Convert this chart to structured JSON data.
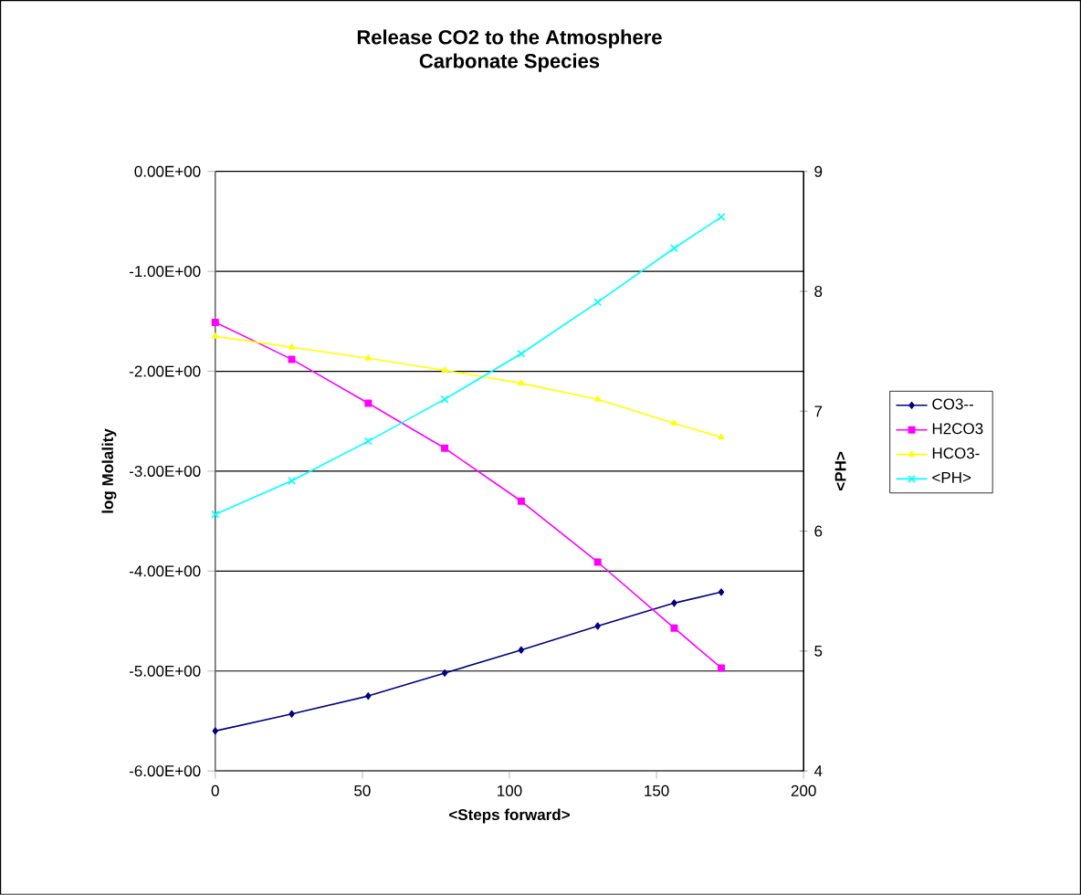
{
  "chart_data": {
    "type": "line",
    "title": "Release CO2 to the Atmosphere",
    "subtitle": "Carbonate Species",
    "xlabel": "<Steps forward>",
    "ylabel": "log Molality",
    "y2label": "<PH>",
    "x": [
      0,
      26,
      52,
      78,
      104,
      130,
      156,
      172
    ],
    "series": [
      {
        "name": "CO3--",
        "color": "#000080",
        "marker": "diamond",
        "values": [
          -5.6,
          -5.43,
          -5.25,
          -5.02,
          -4.79,
          -4.55,
          -4.32,
          -4.21
        ]
      },
      {
        "name": "H2CO3",
        "color": "#ff00ff",
        "marker": "square",
        "values": [
          -1.51,
          -1.88,
          -2.32,
          -2.77,
          -3.3,
          -3.91,
          -4.57,
          -4.97
        ]
      },
      {
        "name": "HCO3-",
        "color": "#ffff00",
        "marker": "triangle",
        "values": [
          -1.65,
          -1.76,
          -1.87,
          -1.99,
          -2.12,
          -2.28,
          -2.52,
          -2.66
        ]
      },
      {
        "name": "<PH>",
        "color": "#00ffff",
        "marker": "cross",
        "axis": "y2",
        "values": [
          6.14,
          6.42,
          6.75,
          7.1,
          7.48,
          7.91,
          8.36,
          8.62
        ]
      }
    ],
    "xlim": [
      0,
      200
    ],
    "xticks": [
      0,
      50,
      100,
      150,
      200
    ],
    "ylim": [
      -6,
      0
    ],
    "yticks": [
      {
        "value": -6,
        "label": "-6.00E+00"
      },
      {
        "value": -5,
        "label": "-5.00E+00"
      },
      {
        "value": -4,
        "label": "-4.00E+00"
      },
      {
        "value": -3,
        "label": "-3.00E+00"
      },
      {
        "value": -2,
        "label": "-2.00E+00"
      },
      {
        "value": -1,
        "label": "-1.00E+00"
      },
      {
        "value": 0,
        "label": "0.00E+00"
      }
    ],
    "y2lim": [
      4,
      9
    ],
    "y2ticks": [
      4,
      5,
      6,
      7,
      8,
      9
    ],
    "grid": "y",
    "legend": "right",
    "line_style": "solid"
  }
}
